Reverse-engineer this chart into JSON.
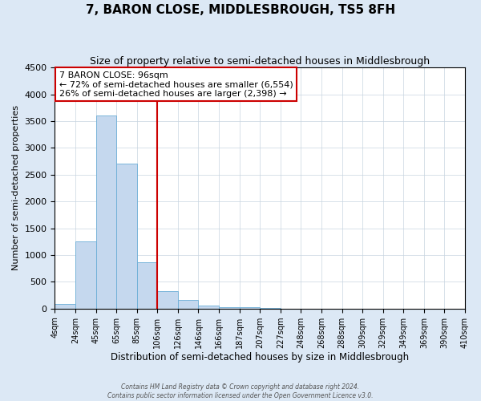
{
  "title": "7, BARON CLOSE, MIDDLESBROUGH, TS5 8FH",
  "subtitle": "Size of property relative to semi-detached houses in Middlesbrough",
  "xlabel": "Distribution of semi-detached houses by size in Middlesbrough",
  "ylabel": "Number of semi-detached properties",
  "footer_line1": "Contains HM Land Registry data © Crown copyright and database right 2024.",
  "footer_line2": "Contains public sector information licensed under the Open Government Licence v3.0.",
  "bar_labels": [
    "4sqm",
    "24sqm",
    "45sqm",
    "65sqm",
    "85sqm",
    "106sqm",
    "126sqm",
    "146sqm",
    "166sqm",
    "187sqm",
    "207sqm",
    "227sqm",
    "248sqm",
    "268sqm",
    "288sqm",
    "309sqm",
    "329sqm",
    "349sqm",
    "369sqm",
    "390sqm",
    "410sqm"
  ],
  "bar_values": [
    80,
    1250,
    3600,
    2700,
    860,
    330,
    165,
    55,
    30,
    20,
    5,
    0,
    0,
    0,
    0,
    0,
    0,
    0,
    0,
    0
  ],
  "bar_color": "#c5d8ee",
  "bar_edge_color": "#6baed6",
  "vline_color": "#cc0000",
  "vline_index": 4,
  "annotation_title": "7 BARON CLOSE: 96sqm",
  "annotation_line1": "← 72% of semi-detached houses are smaller (6,554)",
  "annotation_line2": "26% of semi-detached houses are larger (2,398) →",
  "annotation_box_color": "#ffffff",
  "annotation_box_edge": "#cc0000",
  "ylim": [
    0,
    4500
  ],
  "yticks": [
    0,
    500,
    1000,
    1500,
    2000,
    2500,
    3000,
    3500,
    4000,
    4500
  ],
  "bg_color": "#dce8f5",
  "plot_bg_color": "#ffffff",
  "title_fontsize": 11,
  "subtitle_fontsize": 9,
  "grid_color": "#c8d4e0"
}
